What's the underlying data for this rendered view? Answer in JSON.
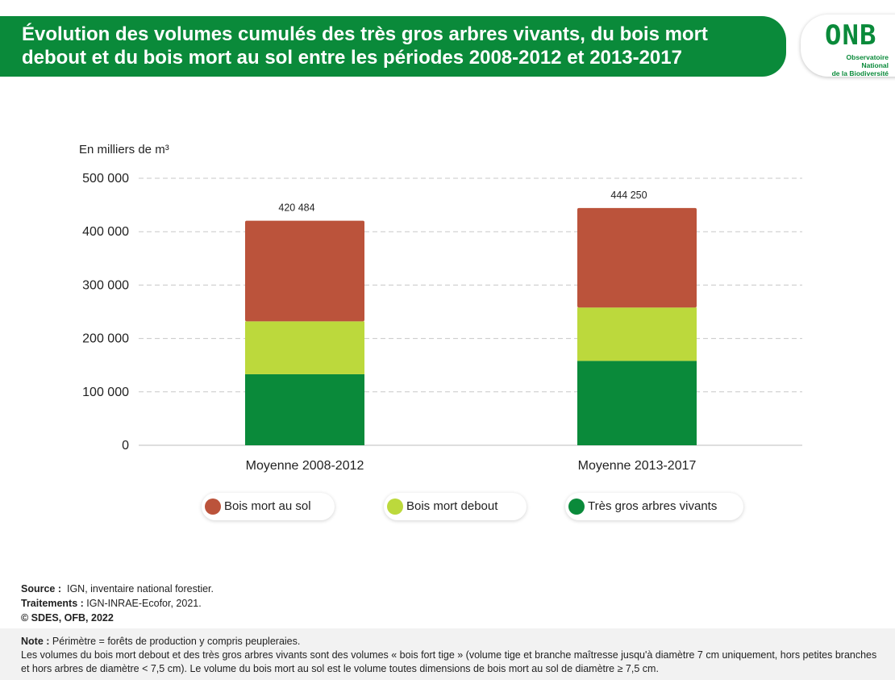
{
  "header": {
    "title_line1": "Évolution des volumes cumulés des très gros arbres vivants, du bois mort",
    "title_line2": "debout et du bois mort au sol entre les périodes 2008-2012 et 2013-2017",
    "logo_main": "ONB",
    "logo_sub_line1": "Observatoire National",
    "logo_sub_line2": "de la Biodiversité"
  },
  "chart_data": {
    "type": "bar",
    "stacked": true,
    "unit_label": "En milliers de m³",
    "categories": [
      "Moyenne 2008-2012",
      "Moyenne 2013-2017"
    ],
    "totals": [
      420484,
      444250
    ],
    "total_labels": [
      "420 484",
      "444 250"
    ],
    "series": [
      {
        "name": "Très gros arbres vivants",
        "color": "#0a8a3a",
        "values": [
          133000,
          158000
        ]
      },
      {
        "name": "Bois mort debout",
        "color": "#bcd93c",
        "values": [
          99000,
          100000
        ]
      },
      {
        "name": "Bois mort au sol",
        "color": "#bb533b",
        "values": [
          188484,
          186250
        ]
      }
    ],
    "ylim": [
      0,
      500000
    ],
    "yticks": [
      0,
      100000,
      200000,
      300000,
      400000,
      500000
    ],
    "ytick_labels": [
      "0",
      "100 000",
      "200 000",
      "300 000",
      "400 000",
      "500 000"
    ],
    "grid": true
  },
  "legend": [
    {
      "label": "Bois mort au sol",
      "color": "#bb533b"
    },
    {
      "label": "Bois mort debout",
      "color": "#bcd93c"
    },
    {
      "label": "Très gros arbres vivants",
      "color": "#0a8a3a"
    }
  ],
  "footer": {
    "source_label": "Source :",
    "source_text": "IGN, inventaire national forestier.",
    "treatment_label": "Traitements :",
    "treatment_text": "IGN-INRAE-Ecofor, 2021.",
    "copyright": "© SDES, OFB, 2022",
    "note_label": "Note :",
    "note_line1": "Périmètre = forêts de production y compris peupleraies.",
    "note_line2": "Les volumes du bois mort debout et des très gros arbres vivants sont des volumes « bois fort tige » (volume tige et branche maîtresse jusqu'à diamètre 7 cm uniquement, hors petites branches et hors arbres de diamètre < 7,5 cm). Le volume du bois mort au sol est le volume toutes dimensions de bois mort au sol de diamètre ≥ 7,5 cm."
  }
}
